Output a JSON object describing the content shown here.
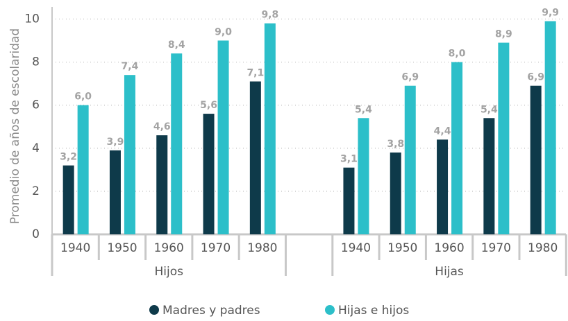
{
  "chart_data": {
    "type": "bar",
    "y_label": "Promedio de años de escolaridad",
    "x_groups": [
      {
        "label": "Hijos",
        "categories": [
          "1940",
          "1950",
          "1960",
          "1970",
          "1980"
        ]
      },
      {
        "label": "Hijas",
        "categories": [
          "1940",
          "1950",
          "1960",
          "1970",
          "1980"
        ]
      }
    ],
    "series": [
      {
        "name": "Madres y padres",
        "color": "#0e3a4a",
        "values": [
          [
            3.2,
            3.9,
            4.6,
            5.6,
            7.1
          ],
          [
            3.1,
            3.8,
            4.4,
            5.4,
            6.9
          ]
        ],
        "value_labels": [
          [
            "3,2",
            "3,9",
            "4,6",
            "5,6",
            "7,1"
          ],
          [
            "3,1",
            "3,8",
            "4,4",
            "5,4",
            "6,9"
          ]
        ]
      },
      {
        "name": "Hijas e hijos",
        "color": "#2cbfc9",
        "values": [
          [
            6.0,
            7.4,
            8.4,
            9.0,
            9.8
          ],
          [
            5.4,
            6.9,
            8.0,
            8.9,
            9.9
          ]
        ],
        "value_labels": [
          [
            "6,0",
            "7,4",
            "8,4",
            "9,0",
            "9,8"
          ],
          [
            "5,4",
            "6,9",
            "8,0",
            "8,9",
            "9,9"
          ]
        ]
      }
    ],
    "ylim": [
      0,
      10.4
    ],
    "yticks": [
      0,
      2,
      4,
      6,
      8,
      10
    ],
    "grid": true
  }
}
